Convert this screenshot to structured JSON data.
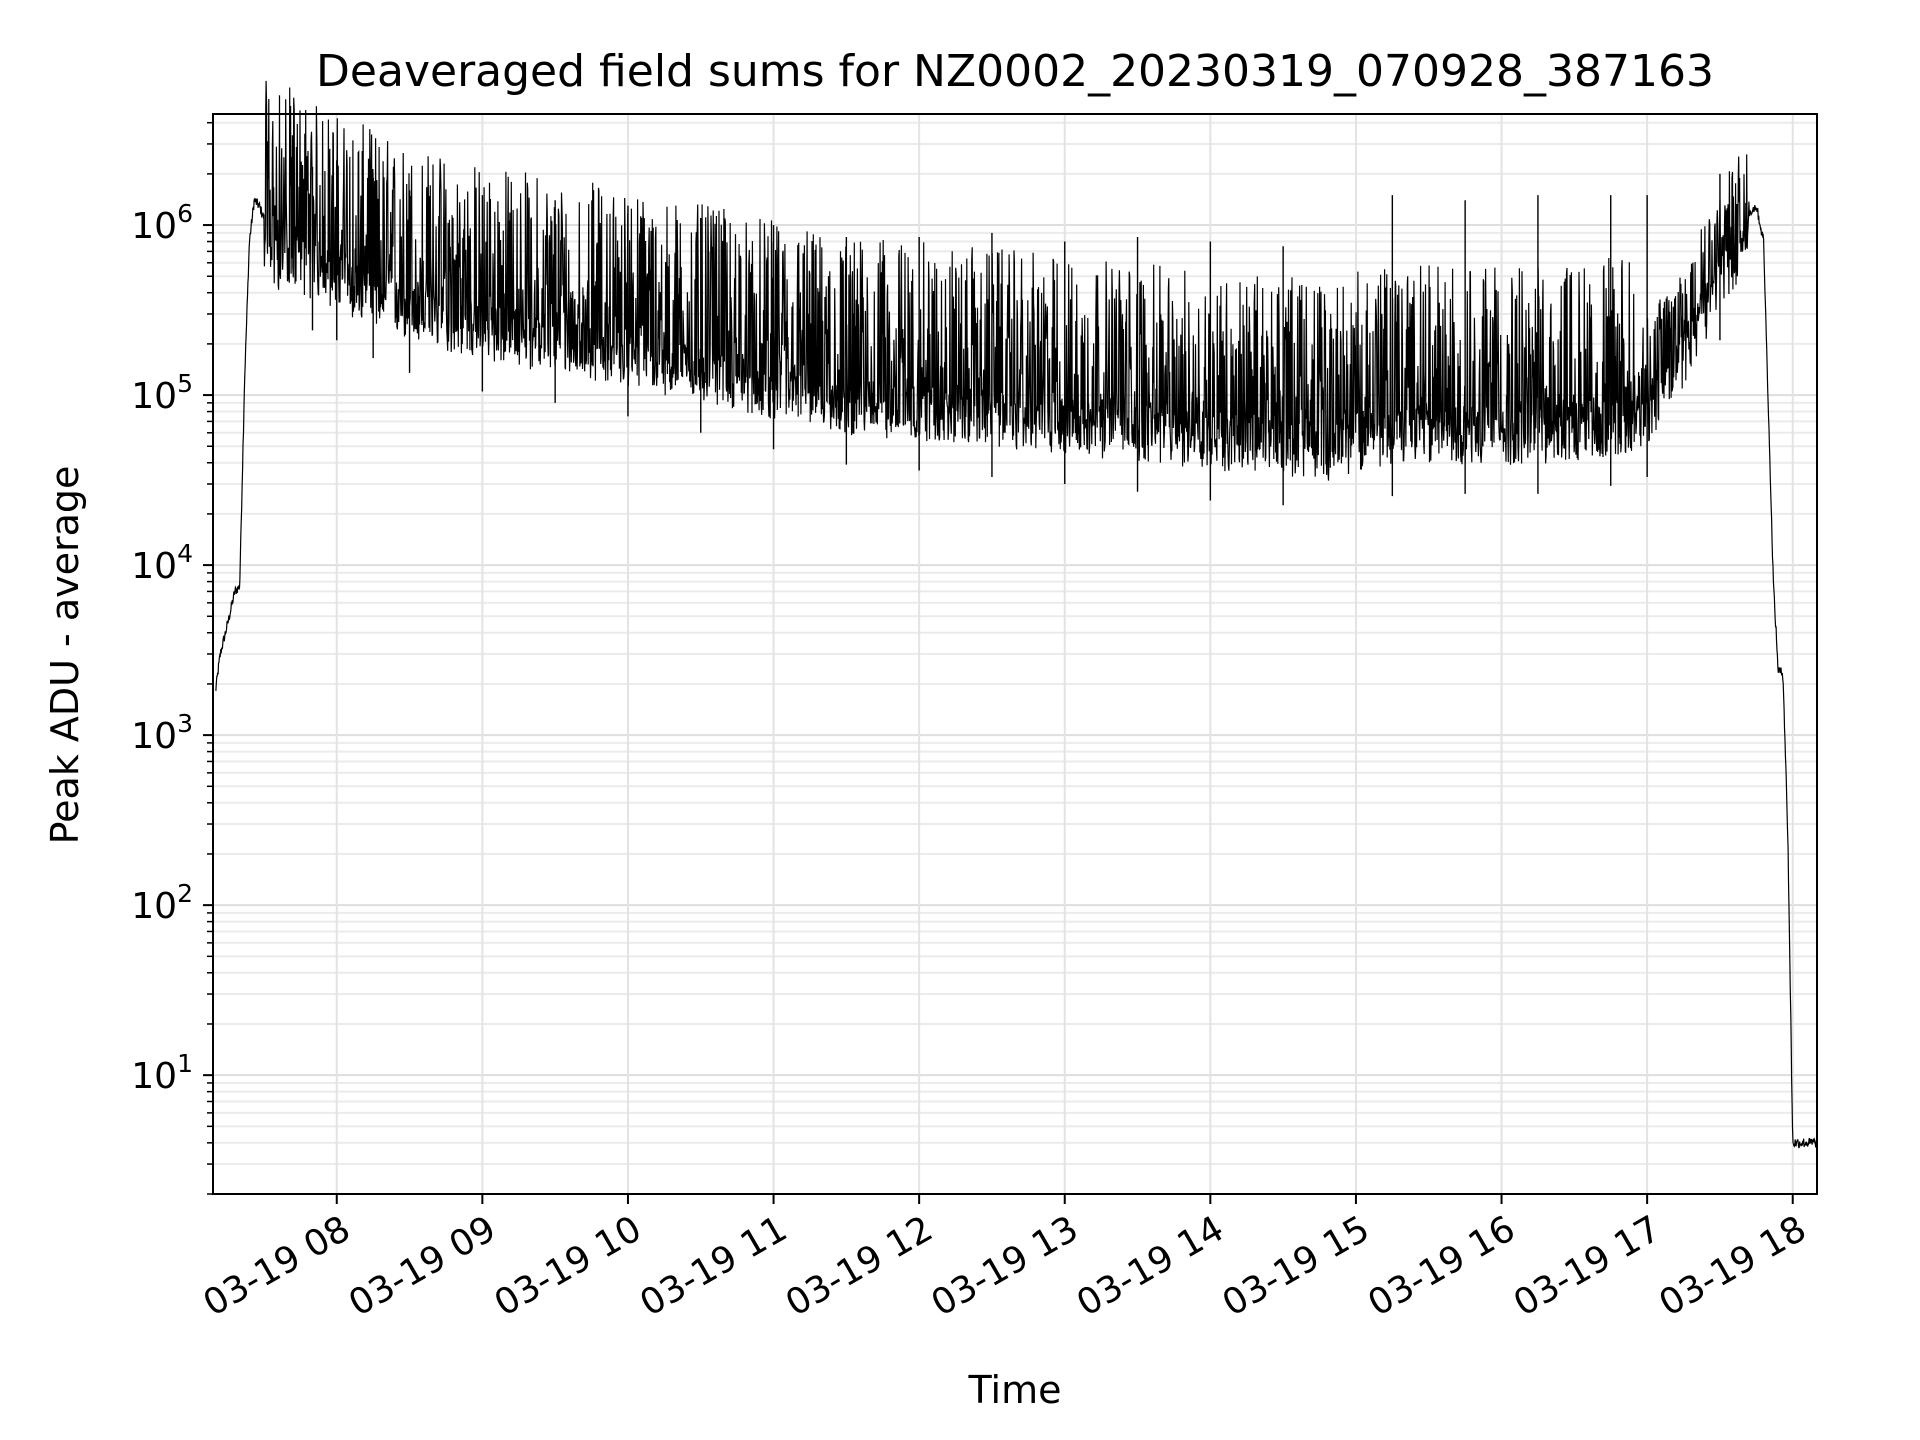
{
  "chart_data": {
    "type": "line",
    "title": "Deaveraged field sums for NZ0002_20230319_070928_387163",
    "xlabel": "Time",
    "ylabel": "Peak ADU - average",
    "yscale": "log",
    "grid": true,
    "legend": "none",
    "xlim": [
      "03-19 07:09",
      "03-19 18:10"
    ],
    "ylim": [
      2,
      4500000
    ],
    "x_ticks": [
      "03-19 08",
      "03-19 09",
      "03-19 10",
      "03-19 11",
      "03-19 12",
      "03-19 13",
      "03-19 14",
      "03-19 15",
      "03-19 16",
      "03-19 17",
      "03-19 18"
    ],
    "y_ticks": [
      {
        "base": "10",
        "exp": "1"
      },
      {
        "base": "10",
        "exp": "2"
      },
      {
        "base": "10",
        "exp": "3"
      },
      {
        "base": "10",
        "exp": "4"
      },
      {
        "base": "10",
        "exp": "5"
      },
      {
        "base": "10",
        "exp": "6"
      }
    ],
    "series": [
      {
        "color": "#000000",
        "x": [
          "03-19 07:10",
          "03-19 07:12",
          "03-19 07:15",
          "03-19 07:18",
          "03-19 07:20",
          "03-19 07:22",
          "03-19 07:24",
          "03-19 07:26",
          "03-19 07:28",
          "03-19 07:30",
          "03-19 07:35",
          "03-19 07:40",
          "03-19 07:50",
          "03-19 08:00",
          "03-19 08:15",
          "03-19 08:30",
          "03-19 08:45",
          "03-19 09:00",
          "03-19 09:30",
          "03-19 10:00",
          "03-19 10:30",
          "03-19 11:00",
          "03-19 11:30",
          "03-19 12:00",
          "03-19 12:30",
          "03-19 13:00",
          "03-19 13:30",
          "03-19 14:00",
          "03-19 14:30",
          "03-19 14:50",
          "03-19 15:00",
          "03-19 15:30",
          "03-19 16:00",
          "03-19 16:30",
          "03-19 16:50",
          "03-19 17:00",
          "03-19 17:15",
          "03-19 17:30",
          "03-19 17:40",
          "03-19 17:45",
          "03-19 17:48",
          "03-19 17:50",
          "03-19 17:52",
          "03-19 17:54",
          "03-19 17:56",
          "03-19 17:58",
          "03-19 18:00",
          "03-19 18:05",
          "03-19 18:10"
        ],
        "y": [
          1800,
          3000,
          4500,
          7000,
          7500,
          120000,
          800000,
          1400000,
          1300000,
          1100000,
          900000,
          1000000,
          800000,
          700000,
          550000,
          450000,
          400000,
          350000,
          300000,
          250000,
          200000,
          160000,
          130000,
          120000,
          110000,
          100000,
          90000,
          80000,
          75000,
          70000,
          80000,
          90000,
          85000,
          90000,
          100000,
          110000,
          250000,
          700000,
          1100000,
          1300000,
          800000,
          80000,
          8000,
          2400,
          2300,
          250,
          4,
          4,
          4
        ],
        "spikes": [
          [
            "03-19 07:50",
            2200000
          ],
          [
            "03-19 08:00",
            2400000
          ],
          [
            "03-19 08:15",
            1900000
          ],
          [
            "03-19 08:30",
            1600000
          ],
          [
            "03-19 09:00",
            1500000
          ],
          [
            "03-19 09:30",
            1400000
          ],
          [
            "03-19 10:00",
            1300000
          ],
          [
            "03-19 10:30",
            1100000
          ],
          [
            "03-19 11:00",
            1000000
          ],
          [
            "03-19 11:30",
            850000
          ],
          [
            "03-19 12:00",
            850000
          ],
          [
            "03-19 12:30",
            900000
          ],
          [
            "03-19 13:00",
            800000
          ],
          [
            "03-19 13:30",
            850000
          ],
          [
            "03-19 14:00",
            800000
          ],
          [
            "03-19 14:30",
            750000
          ],
          [
            "03-19 15:15",
            1500000
          ],
          [
            "03-19 15:45",
            1400000
          ],
          [
            "03-19 16:15",
            1500000
          ],
          [
            "03-19 16:45",
            1500000
          ],
          [
            "03-19 17:00",
            1500000
          ],
          [
            "03-19 17:30",
            2000000
          ]
        ]
      }
    ]
  }
}
